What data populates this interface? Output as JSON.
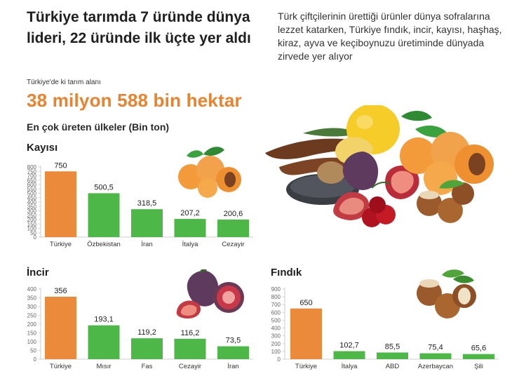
{
  "header": {
    "headline": "Türkiye tarımda 7 üründe dünya lideri, 22 üründe ilk üçte yer aldı",
    "intro": "Türk çiftçilerinin ürettiği ürünler dünya sofralarına lezzet katarken, Türkiye fındık, incir, kayısı, haşhaş, kiraz, ayva ve keçiboynuzu üretiminde dünyada zirvede yer alıyor",
    "area_label": "Türkiye'de ki tarım alanı",
    "area_value": "38 milyon 588 bin hektar",
    "subtitle": "En çok üreten ülkeler (Bin ton)"
  },
  "colors": {
    "highlight_bar": "#ec8a3c",
    "other_bar": "#4db848",
    "axis": "#cfcfcf",
    "tick_text": "#666666"
  },
  "illustrations": [
    "apricot-icon",
    "fig-icon",
    "hazelnut-icon",
    "fruit-pile-illustration"
  ],
  "chart_data": [
    {
      "type": "bar",
      "title": "Kayısı",
      "categories": [
        "Türkiye",
        "Özbekistan",
        "İran",
        "İtalya",
        "Cezayir"
      ],
      "values": [
        750,
        500.5,
        318.5,
        207.2,
        200.6
      ],
      "value_labels": [
        "750",
        "500,5",
        "318,5",
        "207,2",
        "200,6"
      ],
      "yticks": [
        0,
        50,
        100,
        150,
        200,
        250,
        300,
        350,
        400,
        450,
        500,
        550,
        600,
        650,
        700,
        750,
        800
      ],
      "ylim": [
        0,
        800
      ],
      "highlight_index": 0
    },
    {
      "type": "bar",
      "title": "İncir",
      "categories": [
        "Türkiye",
        "Mısır",
        "Fas",
        "Cezayir",
        "İran"
      ],
      "values": [
        356,
        193.1,
        119.2,
        116.2,
        73.5
      ],
      "value_labels": [
        "356",
        "193,1",
        "119,2",
        "116,2",
        "73,5"
      ],
      "yticks": [
        0,
        50,
        100,
        150,
        200,
        250,
        300,
        350,
        400
      ],
      "ylim": [
        0,
        400
      ],
      "highlight_index": 0
    },
    {
      "type": "bar",
      "title": "Fındık",
      "categories": [
        "Türkiye",
        "İtalya",
        "ABD",
        "Azerbaycan",
        "Şili"
      ],
      "values": [
        650,
        102.7,
        85.5,
        75.4,
        65.6
      ],
      "value_labels": [
        "650",
        "102,7",
        "85,5",
        "75,4",
        "65,6"
      ],
      "yticks": [
        0,
        100,
        200,
        300,
        400,
        500,
        600,
        700,
        800,
        900
      ],
      "ylim": [
        0,
        900
      ],
      "highlight_index": 0
    }
  ]
}
